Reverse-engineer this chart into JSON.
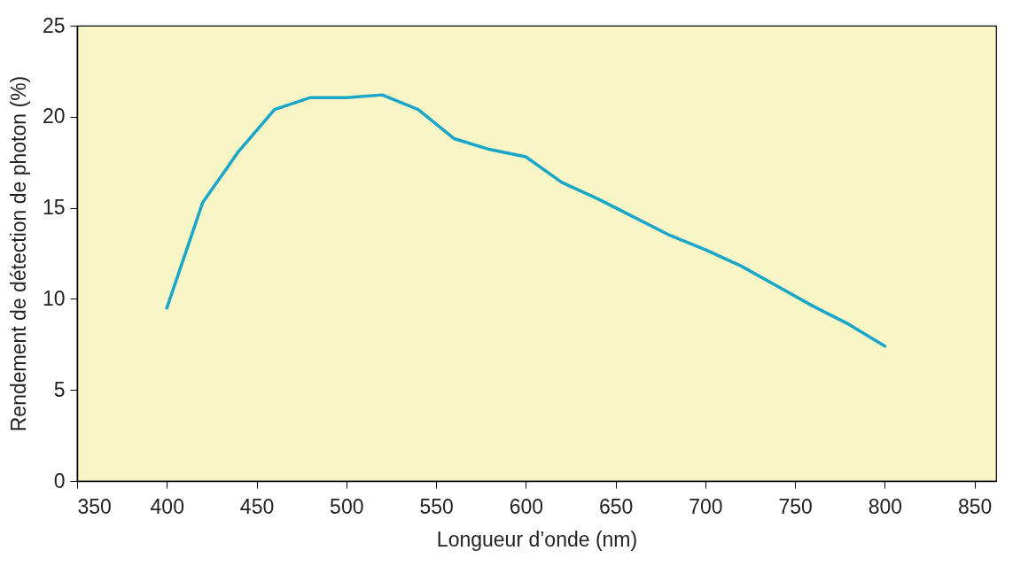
{
  "chart_data": {
    "type": "line",
    "xlabel": "Longueur d’onde (nm)",
    "ylabel": "Rendement de détection de photon (%)",
    "x": [
      400,
      420,
      440,
      460,
      480,
      500,
      520,
      540,
      560,
      580,
      600,
      620,
      640,
      660,
      680,
      700,
      720,
      740,
      760,
      780,
      800
    ],
    "series": [
      {
        "color": "#1aa6c8",
        "values": [
          9.5,
          15.3,
          18.1,
          20.4,
          21.05,
          21.05,
          21.2,
          20.4,
          18.8,
          18.2,
          17.8,
          16.4,
          15.5,
          14.5,
          13.5,
          12.7,
          11.8,
          10.7,
          9.6,
          8.6,
          7.4
        ]
      }
    ],
    "xlim": [
      350,
      862
    ],
    "xticks": [
      350,
      400,
      450,
      500,
      550,
      600,
      650,
      700,
      750,
      800,
      850
    ],
    "ylim": [
      0,
      25
    ],
    "yticks": [
      0,
      5,
      10,
      15,
      20,
      25
    ],
    "grid": false,
    "legend": false,
    "marker": "none",
    "line_style": "solid"
  }
}
